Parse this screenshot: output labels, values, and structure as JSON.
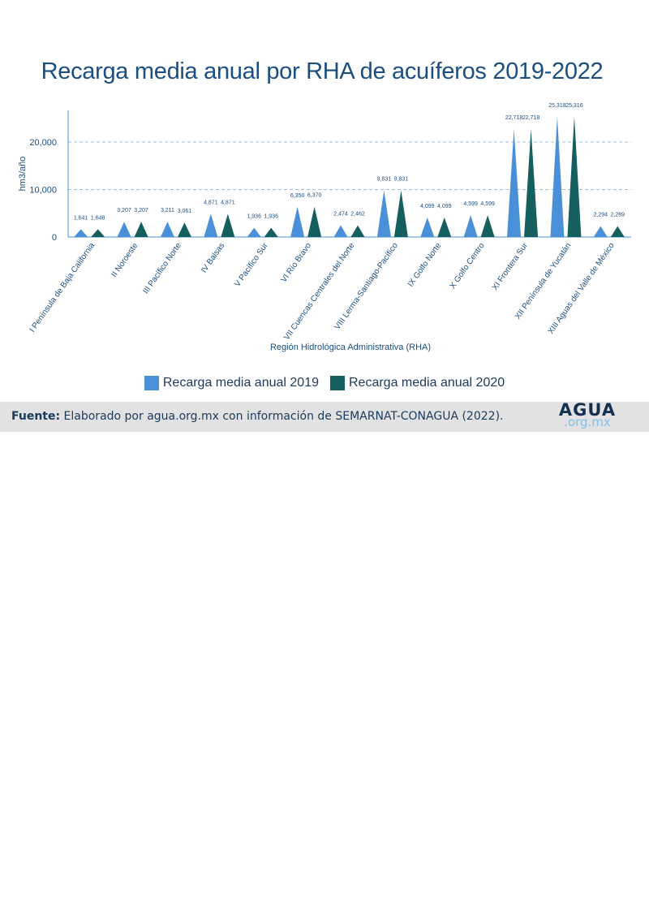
{
  "chart_data": {
    "type": "bar",
    "title": "Recarga media anual por RHA de acuíferos 2019-2022",
    "xlabel": "Región Hidrológica Administrativa (RHA)",
    "ylabel": "hm3/año",
    "ylim": [
      0,
      27000
    ],
    "yticks": [
      0,
      10000,
      20000
    ],
    "ytick_labels": [
      "0",
      "10,000",
      "20,000"
    ],
    "grid": true,
    "legend_position": "bottom",
    "categories": [
      "I Península de Baja California",
      "II Noroeste",
      "III Pacífico Norte",
      "IV Balsas",
      "V Pacífico Sur",
      "VI Río Bravo",
      "VII Cuencas Centrales del Norte",
      "VIII Lerma-Santiago-Pacífico",
      "IX Golfo Norte",
      "X Golfo Centro",
      "XI Frontera Sur",
      "XII Península de Yucatán",
      "XIII Aguas del Valle de México"
    ],
    "series": [
      {
        "name": "Recarga media anual 2019",
        "color": "#4a90d9",
        "values": [
          1641,
          3207,
          3211,
          4871,
          1936,
          6350,
          2474,
          9831,
          4099,
          4599,
          22718,
          25318,
          2294
        ],
        "labels": [
          "1,641",
          "3,207",
          "3,211",
          "4,871",
          "1,936",
          "6,350",
          "2,474",
          "9,831",
          "4,099",
          "4,599",
          "22,718",
          "25,318",
          "2,294"
        ]
      },
      {
        "name": "Recarga media anual 2020",
        "color": "#155f5f",
        "values": [
          1648,
          3207,
          3061,
          4871,
          1936,
          6370,
          2462,
          9831,
          4099,
          4599,
          22718,
          25316,
          2289
        ],
        "labels": [
          "1,648",
          "3,207",
          "3,061",
          "4,871",
          "1,936",
          "6,370",
          "2,462",
          "9,831",
          "4,099",
          "4,599",
          "22,718",
          "25,316",
          "2,289"
        ]
      }
    ]
  },
  "footer": {
    "source_label": "Fuente:",
    "source_text": " Elaborado por agua.org.mx con información de SEMARNAT-CONAGUA (2022).",
    "logo_main": "AGUA",
    "logo_sub": ".org.mx"
  }
}
